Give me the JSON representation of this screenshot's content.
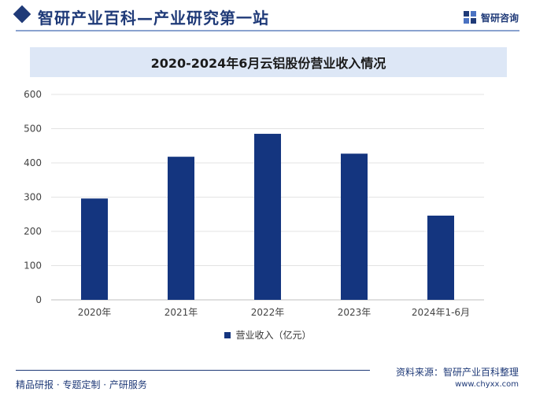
{
  "header": {
    "title": "智研产业百科—产业研究第一站",
    "brand": "智研咨询"
  },
  "colors": {
    "accent": "#1f3a78",
    "bar": "#14357f",
    "title_band": "#dde7f6"
  },
  "footer": {
    "tagline": "精品研报 · 专题定制 · 产研服务",
    "source": "资料来源：智研产业百科整理",
    "website": "www.chyxx.com"
  },
  "chart_data": {
    "type": "bar",
    "title": "2020-2024年6月云铝股份营业收入情况",
    "categories": [
      "2020年",
      "2021年",
      "2022年",
      "2023年",
      "2024年1-6月"
    ],
    "series": [
      {
        "name": "营业收入（亿元）",
        "values": [
          296,
          418,
          485,
          427,
          246
        ]
      }
    ],
    "ylim": [
      0,
      600
    ],
    "yticks": [
      0,
      100,
      200,
      300,
      400,
      500,
      600
    ],
    "xlabel": "",
    "ylabel": "",
    "grid": true,
    "legend_position": "bottom"
  }
}
